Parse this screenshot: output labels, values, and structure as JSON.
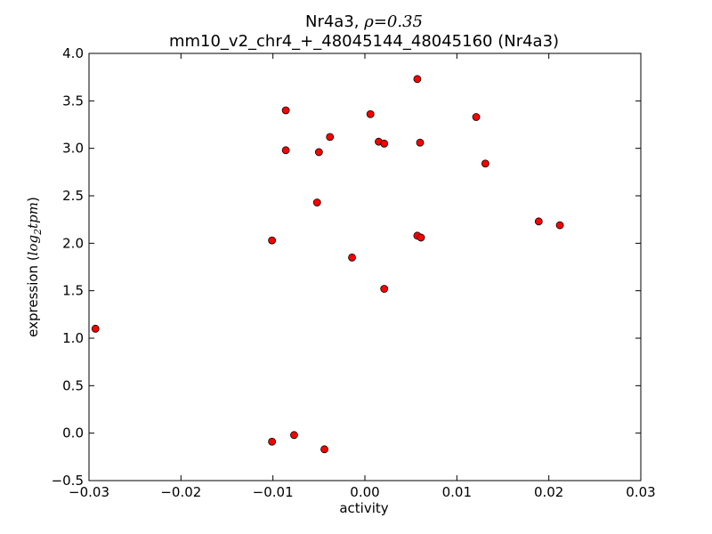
{
  "chart_data": {
    "type": "scatter",
    "title": {
      "prefix": "Nr4a3, ",
      "rho_symbol": "ρ",
      "rho_value": "=0.35"
    },
    "subtitle": "mm10_v2_chr4_+_48045144_48045160 (Nr4a3)",
    "xlabel": "activity",
    "ylabel": {
      "prefix": "expression (",
      "log_base": "log",
      "log_sub": "2",
      "unit": "tpm",
      "suffix": ")"
    },
    "xlim": [
      -0.03,
      0.03
    ],
    "ylim": [
      -0.5,
      4.0
    ],
    "x_ticks": [
      -0.03,
      -0.02,
      -0.01,
      0.0,
      0.01,
      0.02,
      0.03
    ],
    "x_tick_labels": [
      "−0.03",
      "−0.02",
      "−0.01",
      "0.00",
      "0.01",
      "0.02",
      "0.03"
    ],
    "y_ticks": [
      -0.5,
      0.0,
      0.5,
      1.0,
      1.5,
      2.0,
      2.5,
      3.0,
      3.5,
      4.0
    ],
    "y_tick_labels": [
      "−0.5",
      "0.0",
      "0.5",
      "1.0",
      "1.5",
      "2.0",
      "2.5",
      "3.0",
      "3.5",
      "4.0"
    ],
    "grid": false,
    "marker_color": "#ff0000",
    "marker_edge_color": "#000000",
    "points": [
      {
        "x": -0.0293,
        "y": 1.1
      },
      {
        "x": -0.0101,
        "y": 2.03
      },
      {
        "x": -0.0101,
        "y": -0.09
      },
      {
        "x": -0.0086,
        "y": 3.4
      },
      {
        "x": -0.0086,
        "y": 2.98
      },
      {
        "x": -0.0077,
        "y": -0.02
      },
      {
        "x": -0.0052,
        "y": 2.43
      },
      {
        "x": -0.005,
        "y": 2.96
      },
      {
        "x": -0.0044,
        "y": -0.17
      },
      {
        "x": -0.0038,
        "y": 3.12
      },
      {
        "x": -0.0014,
        "y": 1.85
      },
      {
        "x": 0.0006,
        "y": 3.36
      },
      {
        "x": 0.0015,
        "y": 3.07
      },
      {
        "x": 0.0021,
        "y": 3.05
      },
      {
        "x": 0.0021,
        "y": 1.52
      },
      {
        "x": 0.0057,
        "y": 3.73
      },
      {
        "x": 0.0057,
        "y": 2.08
      },
      {
        "x": 0.006,
        "y": 3.06
      },
      {
        "x": 0.0061,
        "y": 2.06
      },
      {
        "x": 0.0121,
        "y": 3.33
      },
      {
        "x": 0.0131,
        "y": 2.84
      },
      {
        "x": 0.0189,
        "y": 2.23
      },
      {
        "x": 0.0212,
        "y": 2.19
      }
    ]
  }
}
